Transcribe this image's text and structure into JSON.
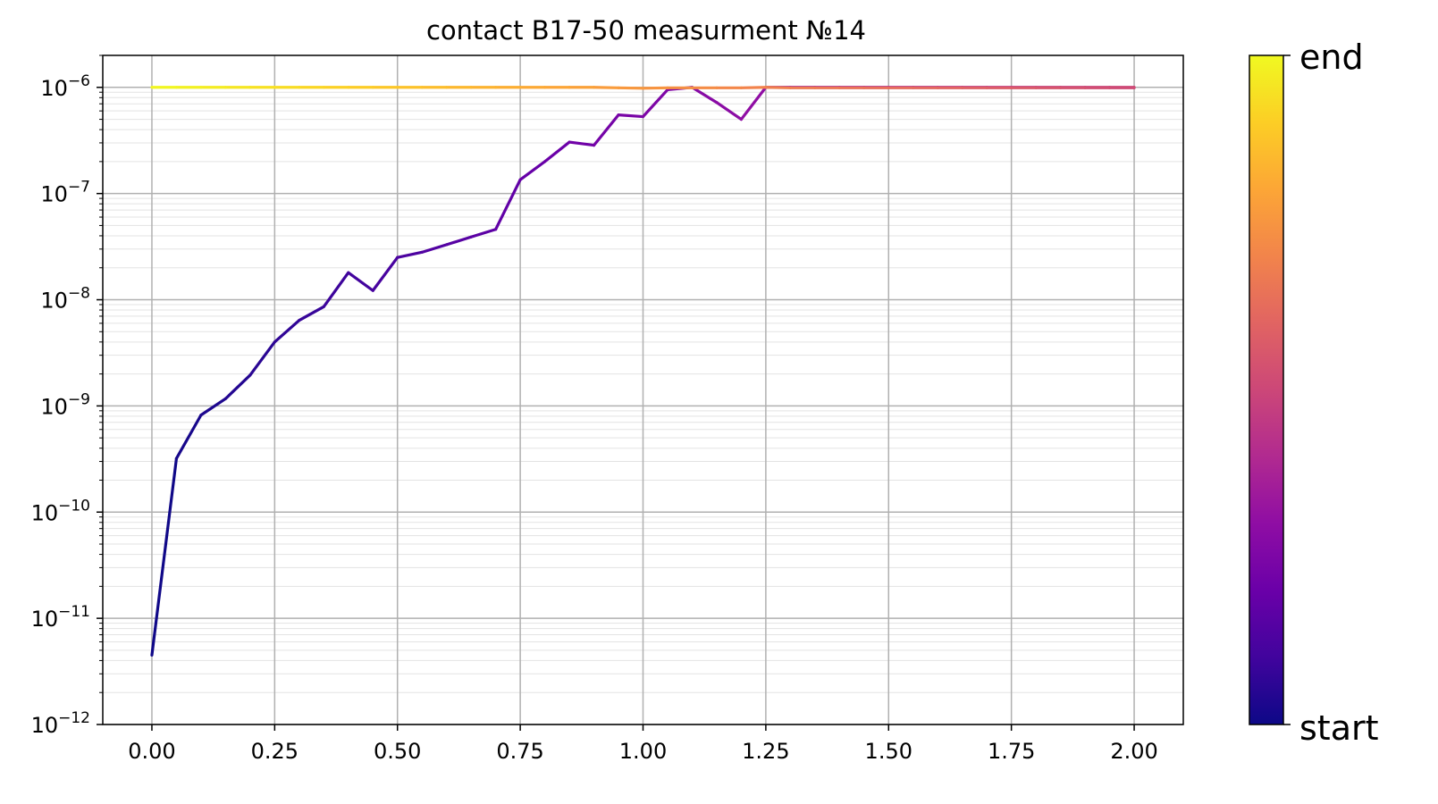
{
  "chart_data": {
    "type": "line",
    "title": "contact B17-50 measurment №14",
    "xlabel": "",
    "ylabel": "",
    "yscale": "log",
    "xlim": [
      -0.1,
      2.1
    ],
    "ylim": [
      1e-12,
      2e-06
    ],
    "grid": true,
    "x_ticks": [
      0.0,
      0.25,
      0.5,
      0.75,
      1.0,
      1.25,
      1.5,
      1.75,
      2.0
    ],
    "x_tick_labels": [
      "0.00",
      "0.25",
      "0.50",
      "0.75",
      "1.00",
      "1.25",
      "1.50",
      "1.75",
      "2.00"
    ],
    "y_ticks": [
      {
        "value": 1e-12,
        "base": "10",
        "exp": "−12"
      },
      {
        "value": 1e-11,
        "base": "10",
        "exp": "−11"
      },
      {
        "value": 1e-10,
        "base": "10",
        "exp": "−10"
      },
      {
        "value": 1e-09,
        "base": "10",
        "exp": "−9"
      },
      {
        "value": 1e-08,
        "base": "10",
        "exp": "−8"
      },
      {
        "value": 1e-07,
        "base": "10",
        "exp": "−7"
      },
      {
        "value": 1e-06,
        "base": "10",
        "exp": "−6"
      }
    ],
    "colormap": "plasma",
    "colorbar": {
      "top_label": "end",
      "bottom_label": "start"
    },
    "x": [
      0.0,
      0.05,
      0.1,
      0.15,
      0.2,
      0.25,
      0.3,
      0.35,
      0.4,
      0.45,
      0.5,
      0.55,
      0.6,
      0.65,
      0.7,
      0.75,
      0.8,
      0.85,
      0.9,
      0.95,
      1.0,
      1.05,
      1.1,
      1.15,
      1.2,
      1.25,
      1.3,
      1.35,
      1.4,
      1.45,
      1.5,
      1.55,
      1.6,
      1.65,
      1.7,
      1.75,
      1.8,
      1.85,
      1.9,
      1.95,
      2.0
    ],
    "forward_y": [
      4.5e-12,
      3.2e-10,
      8.2e-10,
      1.17e-09,
      1.95e-09,
      4e-09,
      6.4e-09,
      8.6e-09,
      1.8e-08,
      1.22e-08,
      2.5e-08,
      2.8e-08,
      3.3e-08,
      3.9e-08,
      4.6e-08,
      1.35e-07,
      2e-07,
      3.05e-07,
      2.85e-07,
      5.5e-07,
      5.3e-07,
      9.5e-07,
      1e-06,
      7.2e-07,
      5e-07,
      1e-06,
      1e-06,
      1e-06,
      1e-06,
      1e-06,
      1e-06,
      1e-06,
      1e-06,
      1e-06,
      1e-06,
      1e-06,
      1e-06,
      1e-06,
      1e-06,
      1e-06,
      1e-06
    ],
    "backward_y": [
      1e-06,
      1e-06,
      1e-06,
      1e-06,
      1e-06,
      1e-06,
      1e-06,
      1e-06,
      1e-06,
      1e-06,
      1e-06,
      1e-06,
      1e-06,
      1e-06,
      1e-06,
      1e-06,
      1e-06,
      1e-06,
      1e-06,
      9.9e-07,
      9.8e-07,
      9.9e-07,
      9.9e-07,
      9.9e-07,
      9.9e-07,
      1e-06,
      9.9e-07,
      9.9e-07,
      9.9e-07,
      9.9e-07,
      9.9e-07,
      9.9e-07,
      9.9e-07,
      9.9e-07,
      9.9e-07,
      9.9e-07,
      9.9e-07,
      9.9e-07,
      9.9e-07,
      9.9e-07,
      9.9e-07
    ]
  }
}
